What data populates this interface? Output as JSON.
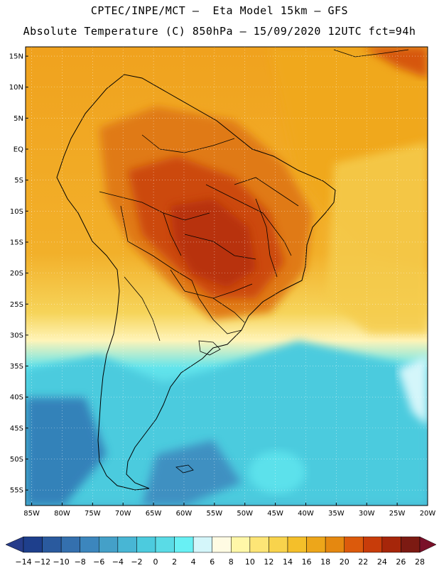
{
  "title_line1": "CPTEC/INPE/MCT –  Eta Model 15km – GFS",
  "title_line2": "Absolute Temperature (C) 850hPa – 15/09/2020 12UTC fct=94h",
  "map": {
    "lat_labels": [
      "15N",
      "10N",
      "5N",
      "EQ",
      "5S",
      "10S",
      "15S",
      "20S",
      "25S",
      "30S",
      "35S",
      "40S",
      "45S",
      "50S",
      "55S"
    ],
    "lon_labels": [
      "85W",
      "80W",
      "75W",
      "70W",
      "65W",
      "60W",
      "55W",
      "50W",
      "45W",
      "40W",
      "35W",
      "30W",
      "25W",
      "20W"
    ],
    "lat_range": [
      -57.5,
      16.5
    ],
    "lon_range": [
      -86,
      -20
    ]
  },
  "colorbar": {
    "ticks": [
      "-14",
      "-12",
      "-10",
      "-8",
      "-6",
      "-4",
      "-2",
      "0",
      "2",
      "4",
      "6",
      "8",
      "10",
      "12",
      "14",
      "16",
      "18",
      "20",
      "22",
      "24",
      "26",
      "28"
    ],
    "colors": [
      "#1e3f8c",
      "#2a5a9e",
      "#3470ae",
      "#3c86bd",
      "#44a0c8",
      "#48b6d4",
      "#4ccbde",
      "#5adbe6",
      "#68f0f4",
      "#d4f6fa",
      "#fffbe3",
      "#fff7a8",
      "#fde576",
      "#f8d34c",
      "#f4bf2a",
      "#eda61a",
      "#e58810",
      "#dc5a0c",
      "#c83c0a",
      "#a6260a",
      "#7c1a12"
    ],
    "under_color": "#263c8a",
    "over_color": "#7a1029"
  }
}
